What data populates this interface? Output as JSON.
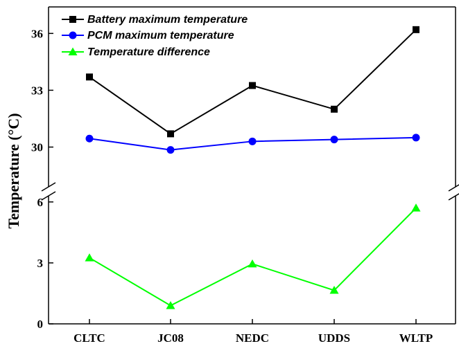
{
  "chart_data": {
    "type": "line",
    "categories": [
      "CLTC",
      "JC08",
      "NEDC",
      "UDDS",
      "WLTP"
    ],
    "ylabel": "Temperature (°C)",
    "xlabel": "",
    "title": "",
    "axis_break": true,
    "upper_panel": {
      "ylim": [
        27.9,
        37.4
      ],
      "yticks": [
        30,
        33,
        36
      ],
      "tick_labels": [
        "30",
        "33",
        "36"
      ]
    },
    "lower_panel": {
      "ylim": [
        0,
        6.3
      ],
      "yticks": [
        0,
        3,
        6
      ],
      "tick_labels": [
        "0",
        "3",
        "6"
      ]
    },
    "legend_position": "top-left",
    "series": [
      {
        "name": "Battery maximum temperature",
        "panel": "upper",
        "color": "#000000",
        "marker": "square",
        "values": [
          33.7,
          30.7,
          33.25,
          32.0,
          36.2
        ]
      },
      {
        "name": "PCM maximum temperature",
        "panel": "upper",
        "color": "#0000ff",
        "marker": "circle",
        "values": [
          30.45,
          29.85,
          30.3,
          30.4,
          30.5
        ]
      },
      {
        "name": "Temperature difference",
        "panel": "lower",
        "color": "#00ff00",
        "marker": "triangle",
        "values": [
          3.25,
          0.9,
          2.95,
          1.65,
          5.7
        ]
      }
    ]
  }
}
